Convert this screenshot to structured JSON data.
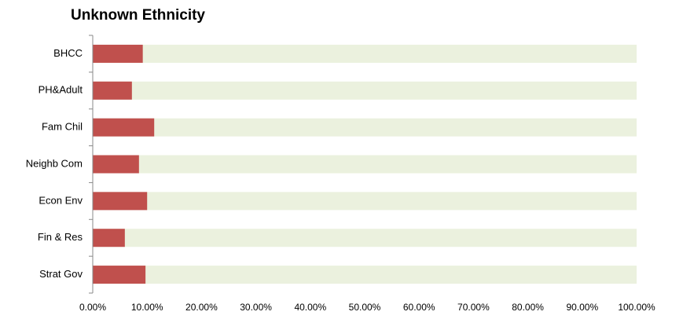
{
  "chart_data": {
    "type": "bar",
    "orientation": "horizontal",
    "title": "Unknown Ethnicity",
    "categories": [
      "BHCC",
      "PH&Adult",
      "Fam Chil",
      "Neighb Com",
      "Econ Env",
      "Fin & Res",
      "Strat Gov"
    ],
    "values": [
      9.2,
      7.2,
      11.3,
      8.5,
      10.0,
      5.9,
      9.7
    ],
    "color": "#c0504d",
    "track_color": "#ebf1de",
    "xlim": [
      0,
      100
    ],
    "xticks": [
      {
        "value": 0,
        "label": "0.00%"
      },
      {
        "value": 10,
        "label": "10.00%"
      },
      {
        "value": 20,
        "label": "20.00%"
      },
      {
        "value": 30,
        "label": "30.00%"
      },
      {
        "value": 40,
        "label": "40.00%"
      },
      {
        "value": 50,
        "label": "50.00%"
      },
      {
        "value": 60,
        "label": "60.00%"
      },
      {
        "value": 70,
        "label": "70.00%"
      },
      {
        "value": 80,
        "label": "80.00%"
      },
      {
        "value": 90,
        "label": "90.00%"
      },
      {
        "value": 100,
        "label": "100.00%"
      }
    ],
    "grid": false
  }
}
